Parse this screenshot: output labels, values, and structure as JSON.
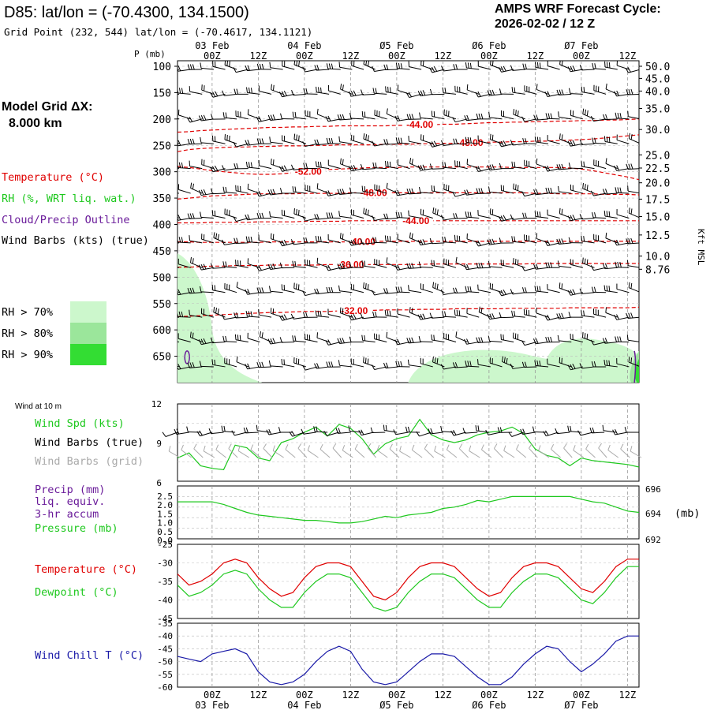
{
  "header": {
    "station": "D85:  lat/lon = (-70.4300, 134.1500)",
    "grid_point": "Grid Point (232, 544) lat/lon = (-70.4617, 134.1121)",
    "cycle_label": "AMPS WRF Forecast Cycle:",
    "cycle_value": "2026-02-02 / 12  Z"
  },
  "legend": {
    "model_grid_label": "Model Grid ΔX:",
    "model_grid_value": "8.000 km",
    "temperature": "Temperature (°C)",
    "rh": "RH (%, WRT liq. wat.)",
    "cloud": "Cloud/Precip Outline",
    "wind_barbs": "Wind Barbs (kts) (true)",
    "rh70": "RH > 70%",
    "rh80": "RH > 80%",
    "rh90": "RH > 90%",
    "wind_at_10m": "Wind at 10 m",
    "wind_spd": "Wind Spd (kts)",
    "wind_barbs_true": "Wind Barbs (true)",
    "wind_barbs_grid": "Wind Barbs (grid)",
    "precip1": "Precip (mm)",
    "precip2": "liq. equiv.",
    "precip3": "3-hr accum",
    "pressure": "Pressure (mb)",
    "pressure_unit": "(mb)",
    "t_label": "Temperature (°C)",
    "td_label": "Dewpoint (°C)",
    "wc_label": "Wind Chill T (°C)"
  },
  "colors": {
    "temp": "#e00000",
    "rh": "#1ec81e",
    "cloud": "#6a1b9a",
    "windchill": "#1a1aa8",
    "grid_barb": "#aaaaaa",
    "rh70": "#ccf7cc",
    "rh80": "#9be69b",
    "rh90": "#33dd33"
  },
  "chart_data": [
    {
      "type": "line",
      "title": "Time-height cross section",
      "x": [
        0,
        3,
        6,
        9,
        12,
        15,
        18,
        21,
        24,
        27,
        30,
        33,
        36,
        39,
        42,
        45,
        48,
        51,
        54,
        57,
        60,
        63,
        66,
        69,
        72,
        75,
        78,
        81,
        84,
        87,
        90,
        93,
        96,
        99,
        102,
        105,
        108,
        111,
        114,
        117,
        120
      ],
      "x_major_labels": [
        {
          "t": 9,
          "hour": "00Z",
          "date": "03 Feb"
        },
        {
          "t": 21,
          "hour": "12Z",
          "date": ""
        },
        {
          "t": 33,
          "hour": "00Z",
          "date": "04 Feb"
        },
        {
          "t": 45,
          "hour": "12Z",
          "date": ""
        },
        {
          "t": 57,
          "hour": "00Z",
          "date": "Ø5 Feb"
        },
        {
          "t": 69,
          "hour": "12Z",
          "date": ""
        },
        {
          "t": 81,
          "hour": "00Z",
          "date": "Ø6 Feb"
        },
        {
          "t": 93,
          "hour": "12Z",
          "date": ""
        },
        {
          "t": 105,
          "hour": "00Z",
          "date": "Ø7 Feb"
        },
        {
          "t": 117,
          "hour": "12Z",
          "date": ""
        }
      ],
      "ylabel": "P (mb)",
      "y_pressure_ticks": [
        "100",
        "150",
        "200",
        "250",
        "300",
        "350",
        "400",
        "450",
        "500",
        "550",
        "600",
        "650"
      ],
      "ylim": [
        100,
        700
      ],
      "y2label": "Kft MSL",
      "y2_ticks": [
        {
          "p": 100,
          "label": "50.0"
        },
        {
          "p": 123,
          "label": "45.0"
        },
        {
          "p": 147,
          "label": "40.0"
        },
        {
          "p": 180,
          "label": "35.0"
        },
        {
          "p": 220,
          "label": "30.0"
        },
        {
          "p": 268,
          "label": "25.0"
        },
        {
          "p": 293,
          "label": "22.5"
        },
        {
          "p": 321,
          "label": "20.0"
        },
        {
          "p": 352,
          "label": "17.5"
        },
        {
          "p": 385,
          "label": "15.0"
        },
        {
          "p": 420,
          "label": "12.5"
        },
        {
          "p": 460,
          "label": "10.0"
        },
        {
          "p": 485,
          "label": "8.76"
        }
      ],
      "temperature_contours": [
        {
          "label": "-44.00",
          "label_t": 63,
          "pressures": [
            225,
            224,
            222,
            221,
            220,
            219,
            218,
            217,
            216,
            216,
            215,
            215,
            214,
            214,
            213,
            213,
            213,
            213,
            213,
            212,
            212,
            211,
            211,
            210,
            210,
            209,
            208,
            207,
            207,
            206,
            206,
            205,
            205,
            204,
            204,
            203,
            203,
            202,
            202,
            201,
            200
          ]
        },
        {
          "label": "-48.00",
          "label_t": 76,
          "pressures": [
            262,
            258,
            256,
            255,
            254,
            253,
            253,
            252,
            252,
            251,
            251,
            251,
            250,
            250,
            249,
            249,
            249,
            249,
            248,
            248,
            248,
            247,
            247,
            246,
            246,
            245,
            245,
            244,
            244,
            243,
            243,
            242,
            242,
            241,
            240,
            239,
            238,
            236,
            234,
            232,
            230
          ]
        },
        {
          "label": "-52.00",
          "label_t": 34,
          "pressures": [
            290,
            292,
            295,
            298,
            300,
            302,
            304,
            305,
            305,
            304,
            302,
            300,
            298,
            296,
            295,
            294,
            293,
            292,
            292,
            292,
            291,
            291,
            291,
            291,
            291,
            291,
            291,
            291,
            291,
            292,
            292,
            292,
            292,
            292,
            293,
            295,
            298,
            302,
            306,
            310,
            315
          ]
        },
        {
          "label": "-48.00",
          "label_t": 51,
          "pressures": [
            352,
            350,
            348,
            346,
            345,
            344,
            343,
            342,
            342,
            342,
            342,
            341,
            341,
            341,
            341,
            340,
            340,
            340,
            340,
            340,
            340,
            340,
            340,
            340,
            340,
            340,
            340,
            340,
            340,
            340,
            340,
            341,
            341,
            342,
            342,
            342,
            342,
            343,
            343,
            343,
            344
          ]
        },
        {
          "label": "-44.00",
          "label_t": 62,
          "pressures": [
            397,
            397,
            397,
            396,
            396,
            396,
            396,
            395,
            395,
            395,
            395,
            394,
            394,
            394,
            394,
            393,
            393,
            393,
            393,
            393,
            393,
            393,
            393,
            393,
            393,
            393,
            393,
            393,
            393,
            393,
            393,
            393,
            393,
            393,
            393,
            393,
            393,
            393,
            393,
            393,
            393
          ]
        },
        {
          "label": "-40.00",
          "label_t": 48,
          "pressures": [
            433,
            433,
            434,
            434,
            434,
            434,
            434,
            434,
            433,
            433,
            433,
            433,
            433,
            433,
            433,
            433,
            433,
            432,
            432,
            432,
            432,
            432,
            432,
            432,
            432,
            432,
            432,
            432,
            432,
            432,
            432,
            432,
            432,
            432,
            432,
            432,
            432,
            432,
            432,
            432,
            432
          ]
        },
        {
          "label": "-36.00",
          "label_t": 45,
          "pressures": [
            481,
            481,
            480,
            479,
            479,
            478,
            478,
            478,
            477,
            477,
            477,
            477,
            477,
            476,
            476,
            476,
            476,
            476,
            476,
            476,
            476,
            476,
            475,
            475,
            475,
            475,
            475,
            475,
            475,
            475,
            475,
            474,
            474,
            474,
            474,
            474,
            474,
            474,
            474,
            474,
            474
          ]
        },
        {
          "label": "-32.00",
          "label_t": 46,
          "pressures": [
            575,
            574,
            573,
            572,
            571,
            570,
            569,
            568,
            567,
            567,
            566,
            565,
            565,
            565,
            564,
            564,
            563,
            563,
            562,
            562,
            562,
            561,
            561,
            561,
            560,
            560,
            560,
            560,
            560,
            559,
            559,
            559,
            559,
            559,
            558,
            558,
            558,
            558,
            558,
            558,
            557
          ]
        }
      ],
      "cloud_outline_labels": []
    },
    {
      "type": "line",
      "title": "Wind at 10 m",
      "ylabel": "Wind Spd (kts)",
      "ylim": [
        6,
        12
      ],
      "y_ticks": [
        "12",
        "9",
        "6"
      ],
      "series": [
        {
          "name": "Wind Spd (kts)",
          "values": [
            7.8,
            8.2,
            7.2,
            7.0,
            6.9,
            8.8,
            8.6,
            7.8,
            7.6,
            9.0,
            9.3,
            9.8,
            10.2,
            9.5,
            10.4,
            10.1,
            9.3,
            8.1,
            8.9,
            9.3,
            9.5,
            10.8,
            9.6,
            9.2,
            9.0,
            9.2,
            9.6,
            9.8,
            9.9,
            10.2,
            9.7,
            8.5,
            8.0,
            7.8,
            7.2,
            7.8,
            7.6,
            7.5,
            7.4,
            7.3,
            7.1
          ]
        }
      ]
    },
    {
      "type": "line",
      "title": "Precip and pressure",
      "y_left_ticks": [
        "2.5",
        "2.0",
        "1.5",
        "1.0",
        "0.5",
        "0.0"
      ],
      "y_right_ticks": [
        "696",
        "694",
        "692"
      ],
      "ylim": [
        692,
        696
      ],
      "series": [
        {
          "name": "Pressure (mb)",
          "values": [
            694.8,
            694.8,
            694.8,
            694.8,
            694.6,
            694.3,
            694.0,
            693.8,
            693.7,
            693.6,
            693.5,
            693.4,
            693.4,
            693.3,
            693.2,
            693.2,
            693.3,
            693.5,
            693.7,
            693.6,
            693.8,
            693.9,
            694.0,
            694.3,
            694.4,
            694.6,
            694.9,
            694.8,
            695.0,
            695.2,
            695.2,
            695.2,
            695.2,
            695.2,
            695.2,
            695.0,
            694.8,
            694.7,
            694.4,
            694.1,
            694.0
          ]
        },
        {
          "name": "Precip (mm)",
          "values": [
            0,
            0,
            0,
            0,
            0,
            0,
            0,
            0,
            0,
            0,
            0,
            0,
            0,
            0,
            0,
            0,
            0,
            0,
            0,
            0,
            0,
            0,
            0,
            0,
            0,
            0,
            0,
            0,
            0,
            0,
            0,
            0,
            0,
            0,
            0,
            0,
            0,
            0,
            0,
            0,
            0
          ]
        }
      ]
    },
    {
      "type": "line",
      "title": "Temperature and Dewpoint",
      "ylim": [
        -45,
        -25
      ],
      "y_ticks": [
        "-25",
        "-30",
        "-35",
        "-40",
        "-45"
      ],
      "series": [
        {
          "name": "Temperature (°C)",
          "values": [
            -33,
            -36,
            -35,
            -33,
            -30,
            -29,
            -30,
            -34,
            -37,
            -39,
            -38,
            -34,
            -31,
            -30,
            -30,
            -31,
            -35,
            -39,
            -40,
            -38,
            -34,
            -31,
            -30,
            -30,
            -31,
            -34,
            -37,
            -39,
            -38,
            -34,
            -31,
            -30,
            -30,
            -31,
            -34,
            -37,
            -38,
            -35,
            -31,
            -29,
            -29
          ]
        },
        {
          "name": "Dewpoint (°C)",
          "values": [
            -36,
            -39,
            -38,
            -36,
            -33,
            -32,
            -33,
            -37,
            -40,
            -42,
            -42,
            -38,
            -35,
            -33,
            -33,
            -34,
            -38,
            -42,
            -43,
            -42,
            -38,
            -35,
            -33,
            -33,
            -34,
            -37,
            -40,
            -42,
            -42,
            -38,
            -35,
            -33,
            -33,
            -34,
            -37,
            -40,
            -41,
            -38,
            -34,
            -31,
            -31
          ]
        }
      ]
    },
    {
      "type": "line",
      "title": "Wind Chill",
      "ylim": [
        -60,
        -35
      ],
      "y_ticks": [
        "-35",
        "-40",
        "-45",
        "-50",
        "-55",
        "-60"
      ],
      "series": [
        {
          "name": "Wind Chill T (°C)",
          "values": [
            -48,
            -49,
            -50,
            -47,
            -46,
            -45,
            -47,
            -54,
            -58,
            -59,
            -58,
            -55,
            -50,
            -46,
            -44,
            -46,
            -53,
            -58,
            -59,
            -58,
            -54,
            -50,
            -47,
            -47,
            -48,
            -52,
            -56,
            -59,
            -59,
            -56,
            -51,
            -47,
            -44,
            -45,
            -50,
            -54,
            -51,
            -47,
            -42,
            -40,
            -40
          ]
        }
      ]
    }
  ]
}
